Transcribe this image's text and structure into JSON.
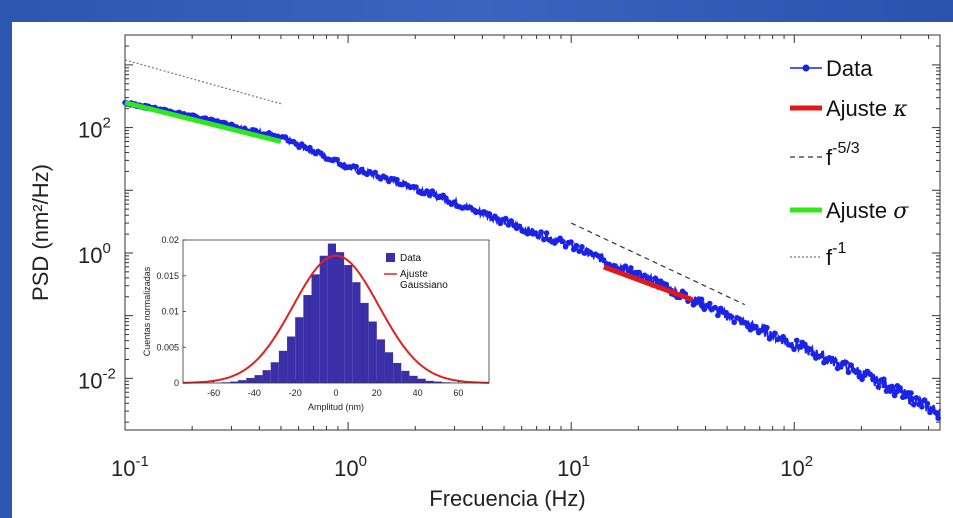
{
  "chart_data": [
    {
      "type": "line",
      "xlabel": "Frecuencia (Hz)",
      "ylabel": "PSD (nm²/Hz)",
      "xscale": "log",
      "yscale": "log",
      "xlim": [
        0.1,
        450
      ],
      "ylim": [
        0.0015,
        3000
      ],
      "xticks": [
        {
          "value": 0.1,
          "base": "10",
          "exp": "-1"
        },
        {
          "value": 1,
          "base": "10",
          "exp": "0"
        },
        {
          "value": 10,
          "base": "10",
          "exp": "1"
        },
        {
          "value": 100,
          "base": "10",
          "exp": "2"
        }
      ],
      "yticks": [
        {
          "value": 0.01,
          "base": "10",
          "exp": "-2"
        },
        {
          "value": 1,
          "base": "10",
          "exp": "0"
        },
        {
          "value": 100,
          "base": "10",
          "exp": "2"
        }
      ],
      "legend_position": "right",
      "series": [
        {
          "name": "Data",
          "style": "line-with-dots",
          "color": "#1a23e6",
          "x": [
            0.1,
            0.2,
            0.5,
            1,
            2,
            5,
            10,
            20,
            50,
            100,
            200,
            450
          ],
          "y": [
            250,
            150,
            70,
            24,
            11,
            3.2,
            1.3,
            0.45,
            0.1,
            0.035,
            0.012,
            0.0028
          ]
        },
        {
          "name": "Ajuste κ",
          "legend_text": "Ajuste ",
          "legend_symbol": "κ",
          "style": "thick-line",
          "color": "#e01818",
          "x": [
            14,
            35
          ],
          "y": [
            0.6,
            0.18
          ]
        },
        {
          "name": "f^-5/3",
          "legend_text": "f",
          "legend_sup": "-5/3",
          "style": "dashed",
          "color": "#333333",
          "x": [
            10,
            60
          ],
          "y": [
            3,
            0.15
          ]
        },
        {
          "name": "Ajuste σ",
          "legend_text": "Ajuste ",
          "legend_symbol": "σ",
          "style": "thick-line",
          "color": "#2ee81a",
          "x": [
            0.1,
            0.5
          ],
          "y": [
            250,
            60
          ]
        },
        {
          "name": "f^-1",
          "legend_text": "f",
          "legend_sup": "-1",
          "style": "dotted",
          "color": "#777777",
          "x": [
            0.1,
            0.5
          ],
          "y": [
            1200,
            240
          ]
        }
      ]
    },
    {
      "type": "bar",
      "inset": true,
      "xlabel": "Amplitud (nm)",
      "ylabel": "Cuentas normalizadas",
      "xlim": [
        -75,
        75
      ],
      "ylim": [
        0,
        0.02
      ],
      "xticks": [
        "-60",
        "-40",
        "-20",
        "0",
        "20",
        "40",
        "60"
      ],
      "yticks": [
        "0",
        "0.005",
        "0.01",
        "0.015",
        "0.02"
      ],
      "bin_width": 4,
      "categories": [
        -54,
        -50,
        -46,
        -42,
        -38,
        -34,
        -30,
        -26,
        -22,
        -18,
        -14,
        -10,
        -6,
        -2,
        2,
        6,
        10,
        14,
        18,
        22,
        26,
        30,
        34,
        38,
        42,
        46,
        50,
        54
      ],
      "values": [
        0.0001,
        0.0002,
        0.0004,
        0.0007,
        0.0011,
        0.0018,
        0.0029,
        0.0045,
        0.0065,
        0.0092,
        0.0123,
        0.0152,
        0.0178,
        0.0195,
        0.0183,
        0.0165,
        0.0141,
        0.0112,
        0.0086,
        0.0061,
        0.0043,
        0.0028,
        0.0017,
        0.001,
        0.0006,
        0.0003,
        0.0002,
        0.0001
      ],
      "fit": {
        "mean": 0,
        "sigma": 21,
        "peak": 0.0178
      },
      "series": [
        {
          "name": "Data",
          "color": "#3b2fa8"
        },
        {
          "name": "Ajuste\nGaussiano",
          "color": "#e02020"
        }
      ]
    }
  ]
}
